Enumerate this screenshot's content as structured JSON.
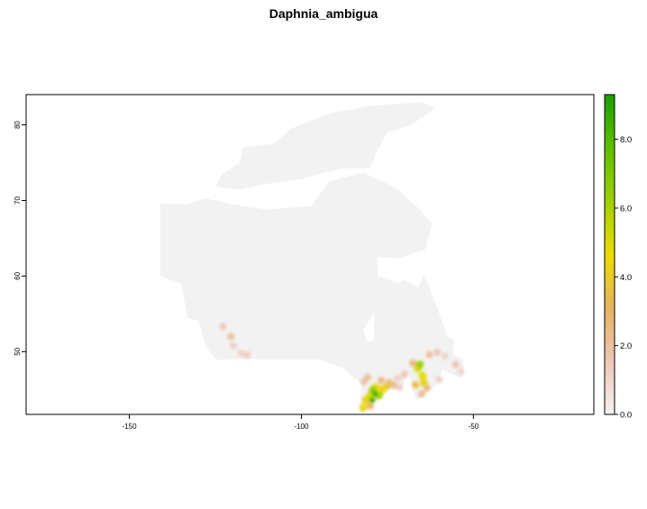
{
  "title": "Daphnia_ambigua",
  "colors": {
    "land": "#f2f2f2",
    "frame": "#000000",
    "ramp": [
      "#f2f2f2",
      "#eec6b6",
      "#e6b35e",
      "#eddc00",
      "#9ed000",
      "#5fbf00",
      "#18a000"
    ]
  },
  "chart_data": {
    "type": "heatmap",
    "title": "Daphnia_ambigua",
    "x_ticks": [
      {
        "value": -150,
        "label": "-150"
      },
      {
        "value": -100,
        "label": "-100"
      },
      {
        "value": -50,
        "label": "-50"
      }
    ],
    "y_ticks": [
      {
        "value": 50,
        "label": "50"
      },
      {
        "value": 60,
        "label": "60"
      },
      {
        "value": 70,
        "label": "70"
      },
      {
        "value": 80,
        "label": "80"
      }
    ],
    "xlim": [
      -180,
      -15
    ],
    "ylim": [
      41.7,
      84
    ],
    "legend": {
      "position": "right",
      "range": [
        0,
        9.3
      ],
      "ticks": [
        {
          "value": 0,
          "label": "0.0"
        },
        {
          "value": 2,
          "label": "2.0"
        },
        {
          "value": 4,
          "label": "4.0"
        },
        {
          "value": 6,
          "label": "6.0"
        },
        {
          "value": 8,
          "label": "8.0"
        }
      ]
    },
    "base_region": [
      [
        -141,
        60
      ],
      [
        -141,
        69.6
      ],
      [
        -133,
        69.5
      ],
      [
        -128,
        70.3
      ],
      [
        -120,
        69.5
      ],
      [
        -110,
        68.8
      ],
      [
        -97,
        69.3
      ],
      [
        -92,
        72.5
      ],
      [
        -82,
        73.7
      ],
      [
        -72,
        71.5
      ],
      [
        -62,
        67
      ],
      [
        -64,
        63.5
      ],
      [
        -72,
        62.3
      ],
      [
        -78,
        62.5
      ],
      [
        -77.5,
        58
      ],
      [
        -77,
        56
      ],
      [
        -79,
        55
      ],
      [
        -82,
        52.9
      ],
      [
        -81,
        51.3
      ],
      [
        -79,
        51.5
      ],
      [
        -78.8,
        55
      ],
      [
        -77.5,
        60
      ],
      [
        -72,
        59
      ],
      [
        -70,
        59.5
      ],
      [
        -66,
        58.5
      ],
      [
        -64.5,
        60.3
      ],
      [
        -61.5,
        57
      ],
      [
        -57.5,
        52
      ],
      [
        -55.5,
        51.5
      ],
      [
        -56,
        49.6
      ],
      [
        -53,
        49
      ],
      [
        -52.8,
        47.3
      ],
      [
        -53.8,
        46.5
      ],
      [
        -59,
        47.6
      ],
      [
        -61,
        45.6
      ],
      [
        -64,
        44.5
      ],
      [
        -66.5,
        43.5
      ],
      [
        -67.5,
        44.7
      ],
      [
        -69,
        47.3
      ],
      [
        -71,
        45
      ],
      [
        -74.5,
        45
      ],
      [
        -76,
        44.2
      ],
      [
        -79,
        43.2
      ],
      [
        -82.5,
        41.8
      ],
      [
        -83,
        42.3
      ],
      [
        -82.6,
        45.8
      ],
      [
        -84.5,
        46.5
      ],
      [
        -88.5,
        48
      ],
      [
        -95,
        49
      ],
      [
        -123,
        49
      ],
      [
        -124.5,
        48.8
      ],
      [
        -127.5,
        50.5
      ],
      [
        -130,
        54
      ],
      [
        -133,
        54.5
      ],
      [
        -135,
        59
      ],
      [
        -141,
        60
      ]
    ],
    "arctic_islands": [
      [
        [
          -125,
          71.8
        ],
        [
          -123,
          73.5
        ],
        [
          -118,
          75
        ],
        [
          -117,
          77
        ],
        [
          -108,
          77.5
        ],
        [
          -103,
          79.5
        ],
        [
          -92,
          81.5
        ],
        [
          -80,
          82.5
        ],
        [
          -65,
          83
        ],
        [
          -61,
          82.2
        ],
        [
          -68,
          80
        ],
        [
          -75,
          79
        ],
        [
          -78,
          76.6
        ],
        [
          -80,
          74.3
        ],
        [
          -88,
          74.2
        ],
        [
          -95,
          73.5
        ],
        [
          -100,
          72.8
        ],
        [
          -105,
          72.5
        ],
        [
          -110,
          72.2
        ],
        [
          -118,
          71.4
        ],
        [
          -125,
          71.8
        ]
      ],
      [
        [
          -86,
          73.2
        ],
        [
          -80,
          73.2
        ],
        [
          -72,
          71.3
        ],
        [
          -66,
          69
        ],
        [
          -62,
          66.8
        ],
        [
          -64,
          63.6
        ],
        [
          -70,
          63
        ],
        [
          -75,
          64
        ],
        [
          -80,
          65.5
        ],
        [
          -84,
          68.5
        ],
        [
          -88,
          70.5
        ],
        [
          -86,
          73.2
        ]
      ],
      [
        [
          -85,
          65.6
        ],
        [
          -81,
          66
        ],
        [
          -80,
          63.8
        ],
        [
          -84,
          63.2
        ],
        [
          -87,
          64.2
        ],
        [
          -85,
          65.6
        ]
      ]
    ],
    "hotspots": [
      {
        "lon": -80.8,
        "lat": 46.6,
        "value": 2.0
      },
      {
        "lon": -81.8,
        "lat": 46.0,
        "value": 1.8
      },
      {
        "lon": -79.5,
        "lat": 44.8,
        "value": 3.5
      },
      {
        "lon": -81.2,
        "lat": 43.6,
        "value": 4.2
      },
      {
        "lon": -82.0,
        "lat": 42.6,
        "value": 4.5
      },
      {
        "lon": -80.3,
        "lat": 44.0,
        "value": 5.0
      },
      {
        "lon": -79.4,
        "lat": 43.6,
        "value": 8.8
      },
      {
        "lon": -78.6,
        "lat": 44.4,
        "value": 8.5
      },
      {
        "lon": -79.2,
        "lat": 44.9,
        "value": 6.5
      },
      {
        "lon": -77.5,
        "lat": 44.2,
        "value": 6.0
      },
      {
        "lon": -78.4,
        "lat": 45.3,
        "value": 4.5
      },
      {
        "lon": -76.5,
        "lat": 45.0,
        "value": 4.5
      },
      {
        "lon": -75.2,
        "lat": 45.4,
        "value": 3.8
      },
      {
        "lon": -74.5,
        "lat": 45.9,
        "value": 2.5
      },
      {
        "lon": -73.2,
        "lat": 45.6,
        "value": 2.2
      },
      {
        "lon": -72.0,
        "lat": 46.5,
        "value": 1.2
      },
      {
        "lon": -71.5,
        "lat": 45.3,
        "value": 1.2
      },
      {
        "lon": -70.0,
        "lat": 47.0,
        "value": 1.5
      },
      {
        "lon": -76.8,
        "lat": 46.2,
        "value": 2.5
      },
      {
        "lon": -80.0,
        "lat": 42.8,
        "value": 2.8
      },
      {
        "lon": -66.2,
        "lat": 47.8,
        "value": 5.0
      },
      {
        "lon": -65.6,
        "lat": 48.3,
        "value": 6.2
      },
      {
        "lon": -64.8,
        "lat": 46.8,
        "value": 4.8
      },
      {
        "lon": -64.4,
        "lat": 45.9,
        "value": 4.2
      },
      {
        "lon": -66.8,
        "lat": 45.6,
        "value": 3.5
      },
      {
        "lon": -65.0,
        "lat": 44.4,
        "value": 2.2
      },
      {
        "lon": -63.5,
        "lat": 45.2,
        "value": 2.5
      },
      {
        "lon": -67.6,
        "lat": 48.5,
        "value": 2.5
      },
      {
        "lon": -62.8,
        "lat": 49.6,
        "value": 2.0
      },
      {
        "lon": -60.5,
        "lat": 49.9,
        "value": 1.5
      },
      {
        "lon": -58.3,
        "lat": 49.4,
        "value": 1.0
      },
      {
        "lon": -55.2,
        "lat": 48.3,
        "value": 1.6
      },
      {
        "lon": -53.6,
        "lat": 47.4,
        "value": 1.0
      },
      {
        "lon": -60.0,
        "lat": 46.3,
        "value": 1.2
      },
      {
        "lon": -122.8,
        "lat": 53.3,
        "value": 1.5
      },
      {
        "lon": -120.5,
        "lat": 52.0,
        "value": 2.0
      },
      {
        "lon": -119.8,
        "lat": 50.8,
        "value": 1.2
      },
      {
        "lon": -117.6,
        "lat": 49.8,
        "value": 1.0
      },
      {
        "lon": -115.8,
        "lat": 49.6,
        "value": 1.3
      }
    ]
  }
}
